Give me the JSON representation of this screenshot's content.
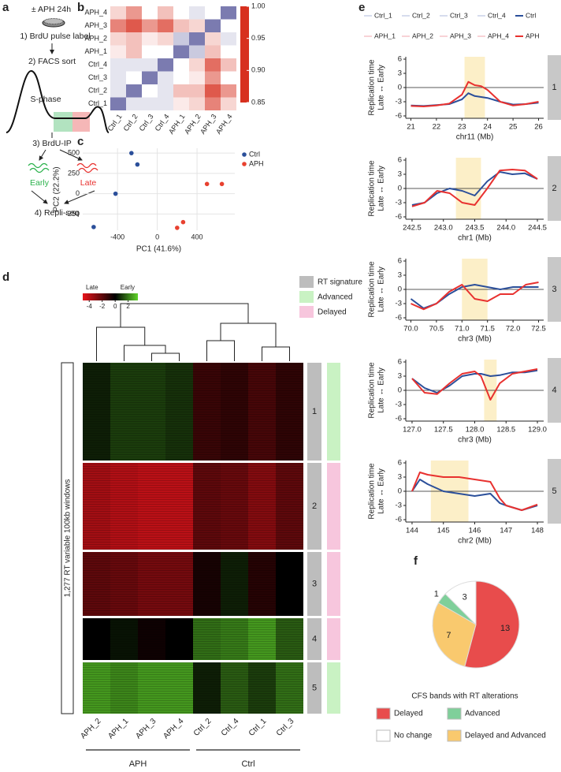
{
  "panel_labels": [
    "a",
    "b",
    "c",
    "d",
    "e",
    "f"
  ],
  "schematic": {
    "treatment": "± APH 24h",
    "steps": [
      "1) BrdU pulse label",
      "2) FACS sort",
      "3) BrdU-IP",
      "4) Repli-seq"
    ],
    "phase": "S-phase",
    "fractions": [
      "Early",
      "Late"
    ]
  },
  "line_legend": [
    {
      "name": "Ctrl_1",
      "color": "#c9d0e8"
    },
    {
      "name": "Ctrl_2",
      "color": "#c9d0e8"
    },
    {
      "name": "Ctrl_3",
      "color": "#c9d0e8"
    },
    {
      "name": "Ctrl_4",
      "color": "#c9d0e8"
    },
    {
      "name": "Ctrl",
      "color": "#2b4f9a"
    },
    {
      "name": "APH_1",
      "color": "#f6c3c9"
    },
    {
      "name": "APH_2",
      "color": "#f6c3c9"
    },
    {
      "name": "APH_3",
      "color": "#f6c3c9"
    },
    {
      "name": "APH_4",
      "color": "#f6c3c9"
    },
    {
      "name": "APH",
      "color": "#e8312f"
    }
  ],
  "chart_data": [
    {
      "type": "heatmap",
      "x_categories": [
        "Ctrl_1",
        "Ctrl_2",
        "Ctrl_3",
        "Ctrl_4",
        "APH_1",
        "APH_2",
        "APH_3",
        "APH_4"
      ],
      "y_categories": [
        "APH_4",
        "APH_3",
        "APH_2",
        "APH_1",
        "Ctrl_4",
        "Ctrl_3",
        "Ctrl_2",
        "Ctrl_1"
      ],
      "values": [
        [
          0.93,
          0.9,
          0.95,
          0.92,
          0.95,
          0.96,
          0.95,
          1
        ],
        [
          0.89,
          0.87,
          0.9,
          0.88,
          0.92,
          0.93,
          1,
          0.95
        ],
        [
          0.93,
          0.92,
          0.94,
          0.93,
          0.97,
          1,
          0.93,
          0.96
        ],
        [
          0.94,
          0.92,
          0.95,
          0.95,
          1,
          0.97,
          0.92,
          0.95
        ],
        [
          0.96,
          0.96,
          0.96,
          1,
          0.95,
          0.93,
          0.88,
          0.92
        ],
        [
          0.96,
          0.95,
          1,
          0.96,
          0.95,
          0.94,
          0.9,
          0.95
        ],
        [
          0.96,
          1,
          0.95,
          0.96,
          0.92,
          0.92,
          0.87,
          0.9
        ],
        [
          1,
          0.96,
          0.96,
          0.96,
          0.94,
          0.93,
          0.89,
          0.93
        ]
      ],
      "clim": [
        0.85,
        1
      ],
      "colorscale": [
        [
          0.85,
          "#d7301f"
        ],
        [
          0.95,
          "#ffffff"
        ],
        [
          1,
          "#7b7bb0"
        ]
      ],
      "colorbar_ticks": [
        {
          "value": 1,
          "label": "1.00"
        },
        0.95,
        {
          "value": 0.9,
          "label": "0.90"
        },
        0.85
      ]
    },
    {
      "type": "scatter",
      "xlabel": "PC1 (41.6%)",
      "ylabel": "PC2 (22.2%)",
      "xlim": [
        -750,
        780
      ],
      "ylim": [
        -450,
        560
      ],
      "xticks": [
        -400,
        0,
        400
      ],
      "yticks": [
        -250,
        0,
        250,
        500
      ],
      "grid": true,
      "legend": "upper right",
      "series": [
        {
          "name": "Ctrl",
          "color": "#2b4f9a",
          "x": [
            -260,
            -200,
            -420,
            -640
          ],
          "values": [
            500,
            360,
            0,
            -410
          ]
        },
        {
          "name": "APH",
          "color": "#e8412f",
          "x": [
            650,
            500,
            260,
            200
          ],
          "values": [
            120,
            120,
            -350,
            -420
          ]
        }
      ]
    },
    {
      "type": "clustered_heatmap",
      "ylabel": "1,277 RT variable 100kb windows",
      "columns": [
        "APH_2",
        "APH_1",
        "APH_3",
        "APH_4",
        "Ctrl_2",
        "Ctrl_4",
        "Ctrl_1",
        "Ctrl_3"
      ],
      "groups": [
        "APH",
        "Ctrl"
      ],
      "colorbar": {
        "labels": [
          "Late",
          "Early"
        ],
        "ticks": [
          -4,
          -2,
          0,
          2
        ],
        "lim": [
          -5,
          3.5
        ]
      },
      "colorscale": [
        [
          -5,
          "#e8141b"
        ],
        [
          0,
          "#000000"
        ],
        [
          3.5,
          "#5fd32a"
        ]
      ],
      "signature_legend_title": "RT signature",
      "rt_color": "#bdbdbd",
      "signatures": [
        {
          "name": "Advanced",
          "color": "#c9f2c3"
        },
        {
          "name": "Delayed",
          "color": "#f7c6dd"
        }
      ],
      "clusters": [
        {
          "label": "1",
          "signature": "Advanced",
          "values": [
            0.5,
            1,
            1,
            0.8,
            -1.2,
            -1,
            -1.5,
            -1
          ]
        },
        {
          "label": "2",
          "signature": "Delayed",
          "values": [
            -3.5,
            -3.8,
            -4,
            -4,
            -2,
            -2.2,
            -2.8,
            -2
          ]
        },
        {
          "label": "3",
          "signature": "Delayed",
          "values": [
            -2,
            -2.2,
            -2.5,
            -2.5,
            -0.5,
            0.5,
            -0.8,
            0
          ]
        },
        {
          "label": "4",
          "signature": "Delayed",
          "values": [
            0,
            0.3,
            -0.3,
            0,
            1.8,
            2,
            2.5,
            1.5
          ]
        },
        {
          "label": "5",
          "signature": "Advanced",
          "values": [
            2.5,
            2.2,
            2.5,
            2.5,
            0.5,
            1.5,
            1,
            1.8
          ]
        }
      ]
    },
    {
      "type": "line",
      "panel": "1",
      "ylabel": [
        "Replication time",
        "Late ↔ Early"
      ],
      "xlabel": "chr11 (Mb)",
      "xlim": [
        20.8,
        26.2
      ],
      "ylim": [
        -6.5,
        6.5
      ],
      "xticks": [
        21,
        22,
        23,
        24,
        25,
        26
      ],
      "yticks": [
        -6,
        -3,
        0,
        3,
        6
      ],
      "hline": 0,
      "highlight": [
        23.1,
        23.9
      ],
      "highlight_color": "#fcefc8",
      "x": [
        21,
        21.5,
        22,
        22.5,
        23,
        23.25,
        23.5,
        23.75,
        24,
        24.5,
        25,
        25.5,
        26
      ],
      "series": [
        {
          "name": "Ctrl",
          "color": "#2b4f9a",
          "values": [
            -3.8,
            -3.9,
            -3.7,
            -3.5,
            -2.5,
            -1.2,
            -1.8,
            -2.0,
            -2.2,
            -3.0,
            -3.6,
            -3.5,
            -3.2
          ]
        },
        {
          "name": "APH",
          "color": "#e8312f",
          "values": [
            -3.9,
            -4.0,
            -3.8,
            -3.4,
            -1.5,
            1.2,
            0.5,
            0.3,
            -0.5,
            -3.0,
            -3.8,
            -3.5,
            -3.0
          ]
        }
      ]
    },
    {
      "type": "line",
      "panel": "2",
      "ylabel": [
        "Replication time",
        "Late ↔ Early"
      ],
      "xlabel": "chr1 (Mb)",
      "xlim": [
        242.4,
        244.6
      ],
      "ylim": [
        -6.5,
        6.5
      ],
      "xticks": [
        242.5,
        {
          "value": 243,
          "label": "243.0"
        },
        243.5,
        {
          "value": 244,
          "label": "244.0"
        },
        244.5
      ],
      "yticks": [
        -6,
        -3,
        0,
        3,
        6
      ],
      "hline": 0,
      "highlight": [
        243.2,
        243.6
      ],
      "highlight_color": "#fcefc8",
      "x": [
        242.5,
        242.7,
        242.9,
        243.1,
        243.3,
        243.5,
        243.7,
        243.9,
        244.1,
        244.3,
        244.5
      ],
      "series": [
        {
          "name": "Ctrl",
          "color": "#2b4f9a",
          "values": [
            -3.5,
            -3,
            -1,
            0,
            -0.5,
            -1.5,
            1.5,
            3.5,
            3,
            3.2,
            2
          ]
        },
        {
          "name": "APH",
          "color": "#e8312f",
          "values": [
            -3.8,
            -3,
            -0.5,
            -1,
            -3,
            -3.5,
            0,
            3.8,
            4,
            3.8,
            2
          ]
        }
      ]
    },
    {
      "type": "line",
      "panel": "3",
      "ylabel": [
        "Replication time",
        "Late ↔ Early"
      ],
      "xlabel": "chr3 (Mb)",
      "xlim": [
        69.9,
        72.6
      ],
      "ylim": [
        -6.5,
        6.5
      ],
      "xticks": [
        {
          "value": 70,
          "label": "70.0"
        },
        70.5,
        {
          "value": 71,
          "label": "71.0"
        },
        71.5,
        {
          "value": 72,
          "label": "72.0"
        },
        72.5
      ],
      "yticks": [
        -6,
        -3,
        0,
        3,
        6
      ],
      "hline": 0,
      "highlight": [
        71.0,
        71.5
      ],
      "highlight_color": "#fcefc8",
      "x": [
        70,
        70.25,
        70.5,
        70.75,
        71,
        71.25,
        71.5,
        71.75,
        72,
        72.25,
        72.5
      ],
      "series": [
        {
          "name": "Ctrl",
          "color": "#2b4f9a",
          "values": [
            -2,
            -4,
            -3,
            -1,
            0.5,
            1,
            0.5,
            0,
            0.5,
            0.5,
            0.5
          ]
        },
        {
          "name": "APH",
          "color": "#e8312f",
          "values": [
            -3,
            -4.2,
            -3,
            -0.5,
            1,
            -2,
            -2.5,
            -1,
            -1,
            1,
            1.5
          ]
        }
      ]
    },
    {
      "type": "line",
      "panel": "4",
      "ylabel": [
        "Replication time",
        "Late ↔ Early"
      ],
      "xlabel": "chr3 (Mb)",
      "xlim": [
        126.9,
        129.1
      ],
      "ylim": [
        -6.5,
        6.5
      ],
      "xticks": [
        {
          "value": 127,
          "label": "127.0"
        },
        127.5,
        {
          "value": 128,
          "label": "128.0"
        },
        128.5,
        {
          "value": 129,
          "label": "129.0"
        }
      ],
      "yticks": [
        -6,
        -3,
        0,
        3,
        6
      ],
      "hline": 0,
      "highlight": [
        128.15,
        128.35
      ],
      "highlight_color": "#fcefc8",
      "x": [
        127,
        127.2,
        127.4,
        127.6,
        127.8,
        128,
        128.1,
        128.25,
        128.4,
        128.6,
        128.8,
        129
      ],
      "series": [
        {
          "name": "Ctrl",
          "color": "#2b4f9a",
          "values": [
            2.5,
            0.5,
            -0.5,
            1,
            3,
            3.5,
            3.5,
            3,
            3.2,
            3.8,
            3.8,
            4.2
          ]
        },
        {
          "name": "APH",
          "color": "#e8312f",
          "values": [
            2.5,
            -0.5,
            -0.8,
            1.5,
            3.5,
            4,
            3,
            -2,
            1.5,
            3.5,
            4,
            4.5
          ]
        }
      ]
    },
    {
      "type": "line",
      "panel": "5",
      "ylabel": [
        "Replication time",
        "Late ↔ Early"
      ],
      "xlabel": "chr2 (Mb)",
      "xlim": [
        143.8,
        148.2
      ],
      "ylim": [
        -6.5,
        6.5
      ],
      "xticks": [
        144,
        145,
        146,
        147,
        148
      ],
      "yticks": [
        -6,
        -3,
        0,
        3,
        6
      ],
      "hline": 0,
      "highlight": [
        144.6,
        145.8
      ],
      "highlight_color": "#fcefc8",
      "x": [
        144,
        144.25,
        144.5,
        145,
        145.5,
        146,
        146.5,
        146.8,
        147,
        147.5,
        148
      ],
      "series": [
        {
          "name": "Ctrl",
          "color": "#2b4f9a",
          "values": [
            0,
            2.5,
            1.5,
            0,
            -0.5,
            -1,
            -0.5,
            -2.5,
            -3,
            -4,
            -3
          ]
        },
        {
          "name": "APH",
          "color": "#e8312f",
          "values": [
            0,
            4,
            3.5,
            3,
            3,
            2.5,
            2,
            -1.5,
            -3,
            -4,
            -2.8
          ]
        }
      ]
    },
    {
      "type": "pie",
      "legend_title": "CFS bands with RT alterations",
      "categories": [
        "Delayed",
        "Delayed and Advanced",
        "Advanced",
        "No change"
      ],
      "values": [
        13,
        7,
        1,
        3
      ],
      "colors": [
        "#e84c4c",
        "#f9c96e",
        "#7fcf9a",
        "#ffffff"
      ]
    }
  ]
}
